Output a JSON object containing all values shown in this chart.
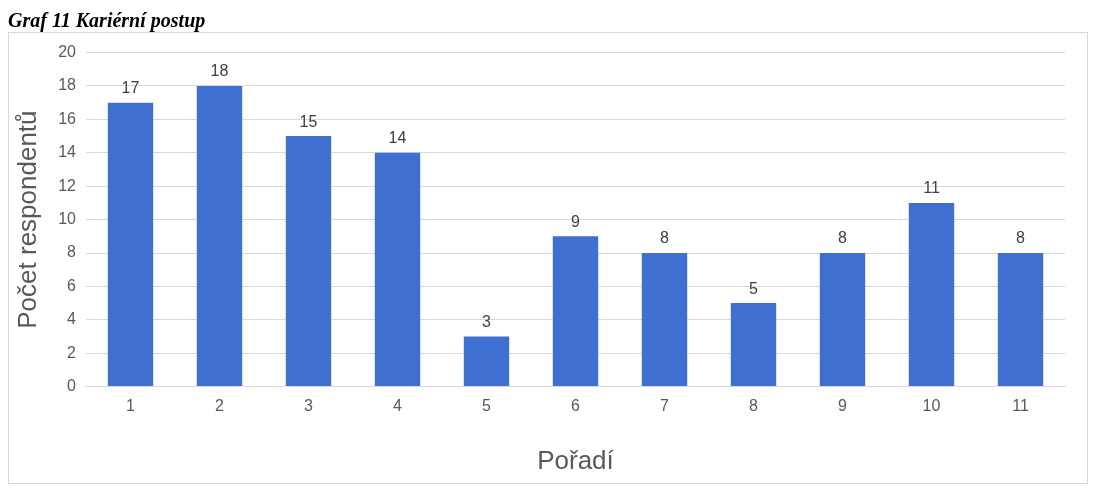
{
  "chart_data": {
    "type": "bar",
    "title": "Graf 11 Kariérní postup",
    "xlabel": "Pořadí",
    "ylabel": "Počet respondentů",
    "categories": [
      "1",
      "2",
      "3",
      "4",
      "5",
      "6",
      "7",
      "8",
      "9",
      "10",
      "11"
    ],
    "values": [
      17,
      18,
      15,
      14,
      3,
      9,
      8,
      5,
      8,
      11,
      8
    ],
    "color": "#3f6fd0",
    "ylim": [
      0,
      20
    ],
    "yticks": [
      0,
      2,
      4,
      6,
      8,
      10,
      12,
      14,
      16,
      18,
      20
    ],
    "grid": "y",
    "data_labels": true,
    "legend": false
  }
}
